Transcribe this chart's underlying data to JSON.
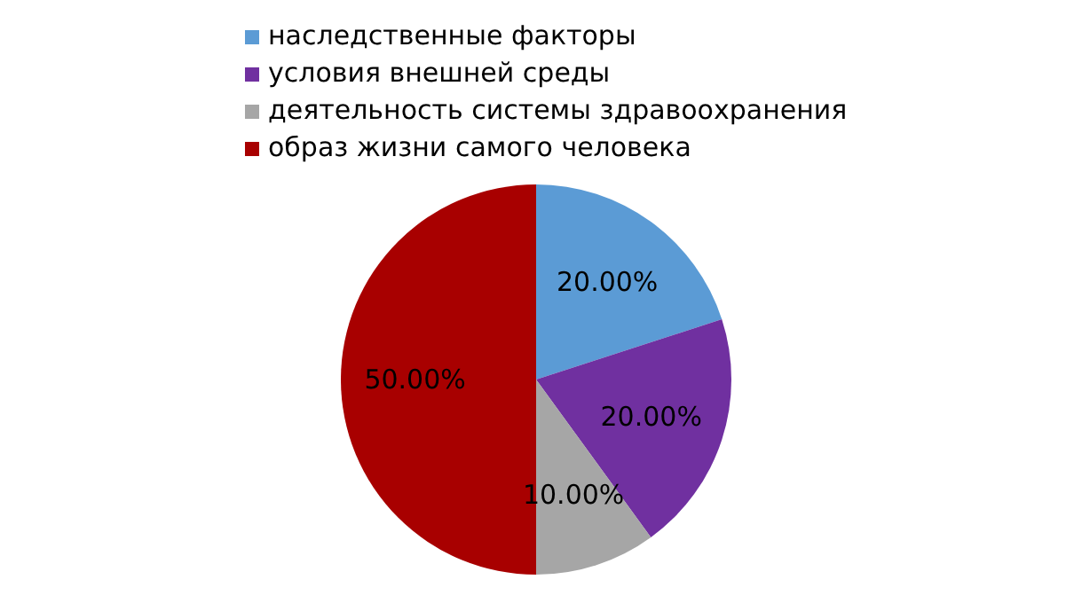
{
  "chart_data": {
    "type": "pie",
    "categories": [
      "наследственные факторы",
      "условия внешней среды",
      "деятельность системы здравоохранения",
      "образ жизни самого человека"
    ],
    "values": [
      20,
      20,
      10,
      50
    ],
    "colors": [
      "#5b9bd5",
      "#7030a0",
      "#a6a6a6",
      "#a80000"
    ],
    "value_labels": [
      "20.00%",
      "20.00%",
      "10.00%",
      "50.00%"
    ],
    "legend": "top"
  }
}
